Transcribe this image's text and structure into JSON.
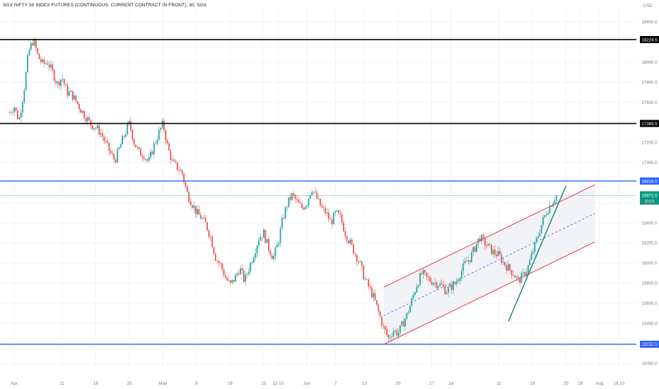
{
  "chart_title": "SGX NIFTY 50 INDEX FUTURES (CONTINUOUS: CURRENT CONTRACT IN FRONT), 30, SGX",
  "currency": "USD",
  "colors": {
    "up": "#26a69a",
    "down": "#ef5350",
    "grid": "#f0f3fa",
    "black_level": "#000000",
    "blue_level": "#2962ff",
    "channel_edge": "#f23645",
    "channel_fill": "#eceef2",
    "channel_mid": "#2962ff",
    "trendline": "#00796b",
    "last_price_badge": "#089981"
  },
  "chart_data": {
    "type": "candlestick",
    "symbol": "SGX NIFTY 50 INDEX FUTURES",
    "interval": "30",
    "ylim": [
      14900,
      18600
    ],
    "y_ticks": [
      15000,
      15200,
      15400,
      15600,
      15800,
      16000,
      16200,
      16400,
      16600,
      17000,
      17200,
      17600,
      17800,
      18000,
      18400
    ],
    "y_tick_labels": [
      "15000.0",
      "15200.0",
      "15400.0",
      "15600.0",
      "15800.0",
      "16000.0",
      "16200.0",
      "16400.0",
      "16600.0",
      "17000.0",
      "17200.0",
      "17600.0",
      "17800.0",
      "18000.0",
      "18400.0"
    ],
    "x_range": [
      "2022-04-01",
      "2022-08-08"
    ],
    "x_ticks": [
      {
        "date": "2022-04-01",
        "label": "Apr"
      },
      {
        "date": "2022-04-11",
        "label": "11"
      },
      {
        "date": "2022-04-18",
        "label": "18"
      },
      {
        "date": "2022-04-25",
        "label": "25"
      },
      {
        "date": "2022-05-02",
        "label": "May"
      },
      {
        "date": "2022-05-09",
        "label": "9"
      },
      {
        "date": "2022-05-16",
        "label": "16"
      },
      {
        "date": "2022-05-23",
        "label": "23"
      },
      {
        "date": "2022-05-26",
        "label": "12-10"
      },
      {
        "date": "2022-06-01",
        "label": "Jun"
      },
      {
        "date": "2022-06-07",
        "label": "7"
      },
      {
        "date": "2022-06-13",
        "label": "13"
      },
      {
        "date": "2022-06-20",
        "label": "20"
      },
      {
        "date": "2022-06-27",
        "label": "27"
      },
      {
        "date": "2022-07-01",
        "label": "Jul"
      },
      {
        "date": "2022-07-11",
        "label": "11"
      },
      {
        "date": "2022-07-18",
        "label": "18"
      },
      {
        "date": "2022-07-25",
        "label": "25"
      },
      {
        "date": "2022-07-28",
        "label": "28"
      },
      {
        "date": "2022-08-01",
        "label": "Aug"
      },
      {
        "date": "2022-08-05",
        "label": "19:10"
      }
    ],
    "price_path": [
      [
        "2022-03-31",
        17500
      ],
      [
        "2022-04-01",
        17560
      ],
      [
        "2022-04-02",
        17420
      ],
      [
        "2022-04-03",
        17700
      ],
      [
        "2022-04-04",
        18100
      ],
      [
        "2022-04-05",
        18224
      ],
      [
        "2022-04-06",
        18050
      ],
      [
        "2022-04-07",
        17980
      ],
      [
        "2022-04-08",
        18000
      ],
      [
        "2022-04-09",
        17900
      ],
      [
        "2022-04-10",
        17780
      ],
      [
        "2022-04-11",
        17850
      ],
      [
        "2022-04-12",
        17700
      ],
      [
        "2022-04-13",
        17680
      ],
      [
        "2022-04-14",
        17600
      ],
      [
        "2022-04-15",
        17520
      ],
      [
        "2022-04-16",
        17450
      ],
      [
        "2022-04-17",
        17380
      ],
      [
        "2022-04-18",
        17350
      ],
      [
        "2022-04-19",
        17300
      ],
      [
        "2022-04-20",
        17200
      ],
      [
        "2022-04-21",
        17100
      ],
      [
        "2022-04-22",
        17020
      ],
      [
        "2022-04-23",
        17150
      ],
      [
        "2022-04-24",
        17280
      ],
      [
        "2022-04-25",
        17390
      ],
      [
        "2022-04-26",
        17200
      ],
      [
        "2022-04-27",
        17100
      ],
      [
        "2022-04-28",
        17080
      ],
      [
        "2022-04-29",
        17000
      ],
      [
        "2022-04-30",
        17150
      ],
      [
        "2022-05-01",
        17280
      ],
      [
        "2022-05-02",
        17389
      ],
      [
        "2022-05-03",
        17150
      ],
      [
        "2022-05-04",
        17000
      ],
      [
        "2022-05-05",
        16950
      ],
      [
        "2022-05-06",
        16900
      ],
      [
        "2022-05-07",
        16700
      ],
      [
        "2022-05-08",
        16600
      ],
      [
        "2022-05-09",
        16500
      ],
      [
        "2022-05-10",
        16450
      ],
      [
        "2022-05-11",
        16380
      ],
      [
        "2022-05-12",
        16250
      ],
      [
        "2022-05-13",
        16050
      ],
      [
        "2022-05-14",
        15980
      ],
      [
        "2022-05-15",
        15860
      ],
      [
        "2022-05-16",
        15780
      ],
      [
        "2022-05-17",
        15850
      ],
      [
        "2022-05-18",
        15950
      ],
      [
        "2022-05-19",
        15820
      ],
      [
        "2022-05-20",
        15960
      ],
      [
        "2022-05-21",
        16100
      ],
      [
        "2022-05-22",
        16250
      ],
      [
        "2022-05-23",
        16300
      ],
      [
        "2022-05-24",
        16150
      ],
      [
        "2022-05-25",
        16050
      ],
      [
        "2022-05-26",
        16200
      ],
      [
        "2022-05-27",
        16450
      ],
      [
        "2022-05-28",
        16600
      ],
      [
        "2022-05-29",
        16680
      ],
      [
        "2022-05-30",
        16600
      ],
      [
        "2022-05-31",
        16550
      ],
      [
        "2022-06-01",
        16600
      ],
      [
        "2022-06-02",
        16750
      ],
      [
        "2022-06-03",
        16650
      ],
      [
        "2022-06-04",
        16550
      ],
      [
        "2022-06-05",
        16500
      ],
      [
        "2022-06-06",
        16400
      ],
      [
        "2022-06-07",
        16500
      ],
      [
        "2022-06-08",
        16450
      ],
      [
        "2022-06-09",
        16300
      ],
      [
        "2022-06-10",
        16200
      ],
      [
        "2022-06-11",
        16100
      ],
      [
        "2022-06-12",
        16000
      ],
      [
        "2022-06-13",
        15850
      ],
      [
        "2022-06-14",
        15750
      ],
      [
        "2022-06-15",
        15650
      ],
      [
        "2022-06-16",
        15500
      ],
      [
        "2022-06-17",
        15350
      ],
      [
        "2022-06-18",
        15250
      ],
      [
        "2022-06-19",
        15330
      ],
      [
        "2022-06-20",
        15300
      ],
      [
        "2022-06-21",
        15400
      ],
      [
        "2022-06-22",
        15500
      ],
      [
        "2022-06-23",
        15650
      ],
      [
        "2022-06-24",
        15800
      ],
      [
        "2022-06-25",
        15900
      ],
      [
        "2022-06-26",
        15850
      ],
      [
        "2022-06-27",
        15820
      ],
      [
        "2022-06-28",
        15800
      ],
      [
        "2022-06-29",
        15780
      ],
      [
        "2022-06-30",
        15720
      ],
      [
        "2022-07-01",
        15760
      ],
      [
        "2022-07-02",
        15800
      ],
      [
        "2022-07-03",
        15900
      ],
      [
        "2022-07-04",
        16000
      ],
      [
        "2022-07-05",
        16050
      ],
      [
        "2022-07-06",
        16150
      ],
      [
        "2022-07-07",
        16260
      ],
      [
        "2022-07-08",
        16200
      ],
      [
        "2022-07-09",
        16150
      ],
      [
        "2022-07-10",
        16100
      ],
      [
        "2022-07-11",
        16080
      ],
      [
        "2022-07-12",
        16000
      ],
      [
        "2022-07-13",
        15950
      ],
      [
        "2022-07-14",
        15900
      ],
      [
        "2022-07-15",
        15820
      ],
      [
        "2022-07-16",
        15870
      ],
      [
        "2022-07-17",
        15950
      ],
      [
        "2022-07-18",
        16100
      ],
      [
        "2022-07-19",
        16250
      ],
      [
        "2022-07-20",
        16400
      ],
      [
        "2022-07-21",
        16520
      ],
      [
        "2022-07-22",
        16600
      ],
      [
        "2022-07-23",
        16673
      ]
    ],
    "horizontal_levels": [
      {
        "value": 18224.5,
        "label": "18224.5",
        "style": "black"
      },
      {
        "value": 17389.5,
        "label": "17389.5",
        "style": "black"
      },
      {
        "value": 16816.5,
        "label": "16816.5",
        "style": "blue"
      },
      {
        "value": 15192.0,
        "label": "15192.0",
        "style": "blue"
      }
    ],
    "last_price": {
      "value": 16672.5,
      "label": "16672.5",
      "countdown": "20:03"
    },
    "channel": {
      "start": {
        "date": "2022-06-17",
        "value": 15190
      },
      "end": {
        "date": "2022-07-31",
        "value": 16210
      },
      "width": 570
    },
    "trendline": {
      "start": {
        "date": "2022-07-13",
        "value": 15420
      },
      "end": {
        "date": "2022-07-25",
        "value": 16770
      }
    }
  }
}
